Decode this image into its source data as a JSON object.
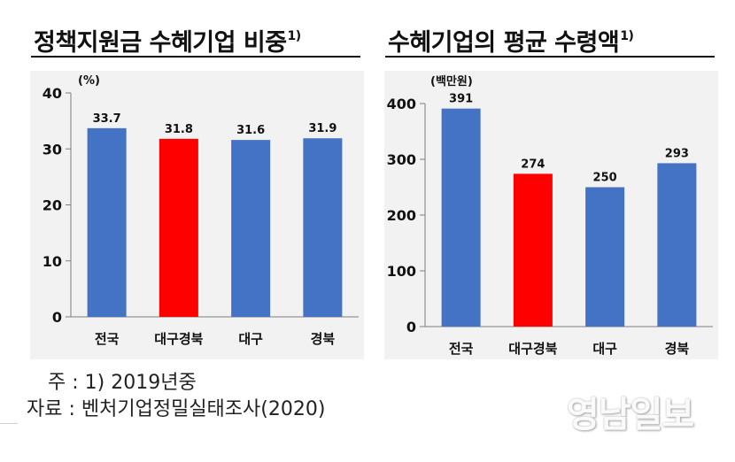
{
  "left": {
    "title": "정책지원금 수혜기업 비중",
    "title_sup": "1)",
    "unit": "(%)",
    "chart_data": {
      "type": "bar",
      "categories": [
        "전국",
        "대구경북",
        "대구",
        "경북"
      ],
      "values": [
        33.7,
        31.8,
        31.6,
        31.9
      ],
      "value_labels": [
        "33.7",
        "31.8",
        "31.6",
        "31.9"
      ],
      "ylim": [
        0,
        40
      ],
      "yticks": [
        0,
        10,
        20,
        30,
        40
      ],
      "bar_colors": [
        "#4472c4",
        "#ff0000",
        "#4472c4",
        "#4472c4"
      ]
    }
  },
  "right": {
    "title": "수혜기업의 평균 수령액",
    "title_sup": "1)",
    "unit": "(백만원)",
    "chart_data": {
      "type": "bar",
      "categories": [
        "전국",
        "대구경북",
        "대구",
        "경북"
      ],
      "values": [
        391,
        274,
        250,
        293
      ],
      "value_labels": [
        "391",
        "274",
        "250",
        "293"
      ],
      "ylim": [
        0,
        400
      ],
      "yticks": [
        0,
        100,
        200,
        300,
        400
      ],
      "bar_colors": [
        "#4472c4",
        "#ff0000",
        "#4472c4",
        "#4472c4"
      ]
    }
  },
  "notes": {
    "line1": "주 : 1) 2019년중",
    "line2": "자료 : 벤처기업정밀실태조사(2020)"
  },
  "watermark": "영남일보"
}
